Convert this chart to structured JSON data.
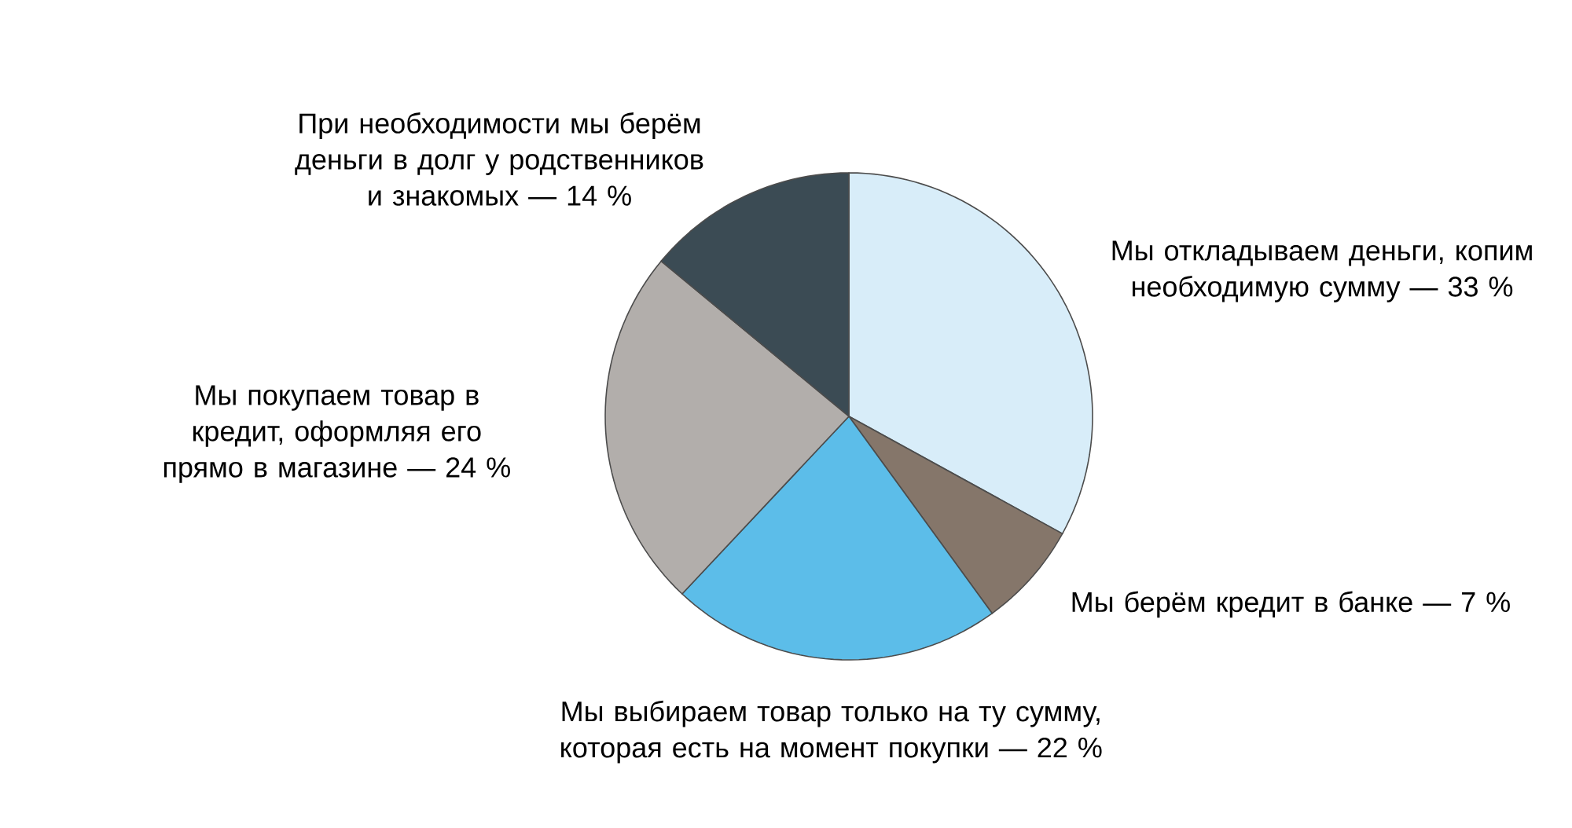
{
  "chart_data": {
    "type": "pie",
    "categories": [
      "Мы откладываем деньги, копим необходимую сумму",
      "Мы берём кредит в банке",
      "Мы выбираем товар только на ту сумму, которая есть на момент покупки",
      "Мы покупаем товар в кредит, оформляя его прямо в магазине",
      "При необходимости мы берём деньги в долг у родственников и знакомых"
    ],
    "values": [
      33,
      7,
      22,
      24,
      14
    ],
    "value_labels": [
      "— 33 %",
      "— 7 %",
      "— 22 %",
      "— 24 %",
      "— 14 %"
    ],
    "colors": [
      "#d8edf9",
      "#85766a",
      "#5cbde9",
      "#b2aeab",
      "#3b4b54"
    ]
  }
}
